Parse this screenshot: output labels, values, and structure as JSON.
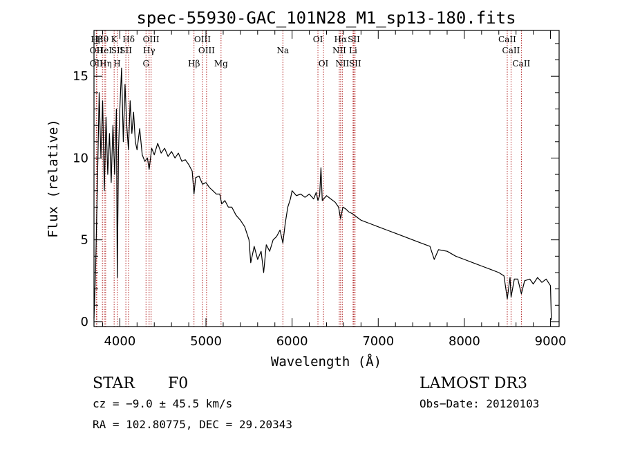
{
  "chart_data": {
    "type": "line",
    "title": "spec-55930-GAC_101N28_M1_sp13-180.fits",
    "xlabel": "Wavelength (Å)",
    "ylabel": "Flux (relative)",
    "xlim": [
      3700,
      9100
    ],
    "ylim": [
      -0.3,
      17.8
    ],
    "xticks": [
      4000,
      5000,
      6000,
      7000,
      8000,
      9000
    ],
    "yticks": [
      0,
      5,
      10,
      15
    ],
    "grid": false,
    "series": [
      {
        "name": "spectrum",
        "points": [
          [
            3700,
            0.2
          ],
          [
            3720,
            3.5
          ],
          [
            3740,
            8.5
          ],
          [
            3760,
            14.0
          ],
          [
            3780,
            10.0
          ],
          [
            3800,
            13.5
          ],
          [
            3820,
            8.0
          ],
          [
            3840,
            12.5
          ],
          [
            3860,
            9.0
          ],
          [
            3880,
            11.5
          ],
          [
            3900,
            8.5
          ],
          [
            3920,
            12.0
          ],
          [
            3940,
            9.0
          ],
          [
            3960,
            13.0
          ],
          [
            3970,
            2.7
          ],
          [
            3985,
            10.5
          ],
          [
            4000,
            13.0
          ],
          [
            4020,
            15.5
          ],
          [
            4040,
            11.0
          ],
          [
            4060,
            14.5
          ],
          [
            4080,
            12.0
          ],
          [
            4100,
            10.5
          ],
          [
            4120,
            13.5
          ],
          [
            4140,
            11.5
          ],
          [
            4160,
            12.8
          ],
          [
            4180,
            11.0
          ],
          [
            4200,
            10.5
          ],
          [
            4230,
            11.8
          ],
          [
            4260,
            10.2
          ],
          [
            4290,
            9.8
          ],
          [
            4320,
            10.0
          ],
          [
            4340,
            9.3
          ],
          [
            4370,
            10.6
          ],
          [
            4400,
            10.2
          ],
          [
            4440,
            10.9
          ],
          [
            4480,
            10.3
          ],
          [
            4520,
            10.6
          ],
          [
            4560,
            10.1
          ],
          [
            4600,
            10.4
          ],
          [
            4640,
            10.0
          ],
          [
            4680,
            10.3
          ],
          [
            4720,
            9.8
          ],
          [
            4760,
            9.9
          ],
          [
            4800,
            9.6
          ],
          [
            4840,
            9.2
          ],
          [
            4861,
            7.8
          ],
          [
            4880,
            8.8
          ],
          [
            4920,
            8.9
          ],
          [
            4960,
            8.4
          ],
          [
            5000,
            8.5
          ],
          [
            5040,
            8.2
          ],
          [
            5080,
            8.0
          ],
          [
            5120,
            7.8
          ],
          [
            5160,
            7.8
          ],
          [
            5183,
            7.2
          ],
          [
            5220,
            7.4
          ],
          [
            5260,
            7.0
          ],
          [
            5300,
            7.0
          ],
          [
            5350,
            6.5
          ],
          [
            5400,
            6.2
          ],
          [
            5450,
            5.8
          ],
          [
            5500,
            5.0
          ],
          [
            5520,
            3.6
          ],
          [
            5560,
            4.6
          ],
          [
            5600,
            3.8
          ],
          [
            5640,
            4.3
          ],
          [
            5670,
            3.0
          ],
          [
            5700,
            4.7
          ],
          [
            5740,
            4.3
          ],
          [
            5780,
            5.0
          ],
          [
            5820,
            5.2
          ],
          [
            5860,
            5.6
          ],
          [
            5893,
            4.8
          ],
          [
            5920,
            6.0
          ],
          [
            5950,
            7.0
          ],
          [
            5980,
            7.5
          ],
          [
            6000,
            8.0
          ],
          [
            6050,
            7.7
          ],
          [
            6100,
            7.8
          ],
          [
            6150,
            7.6
          ],
          [
            6200,
            7.8
          ],
          [
            6250,
            7.5
          ],
          [
            6280,
            7.9
          ],
          [
            6300,
            7.4
          ],
          [
            6320,
            7.7
          ],
          [
            6335,
            9.4
          ],
          [
            6350,
            7.4
          ],
          [
            6400,
            7.7
          ],
          [
            6450,
            7.5
          ],
          [
            6500,
            7.3
          ],
          [
            6540,
            7.0
          ],
          [
            6563,
            6.3
          ],
          [
            6590,
            7.0
          ],
          [
            6620,
            6.9
          ],
          [
            6660,
            6.7
          ],
          [
            6700,
            6.6
          ],
          [
            6750,
            6.4
          ],
          [
            6800,
            6.2
          ],
          [
            6900,
            6.0
          ],
          [
            7000,
            5.8
          ],
          [
            7100,
            5.6
          ],
          [
            7200,
            5.4
          ],
          [
            7300,
            5.2
          ],
          [
            7400,
            5.0
          ],
          [
            7500,
            4.8
          ],
          [
            7600,
            4.6
          ],
          [
            7650,
            3.8
          ],
          [
            7700,
            4.4
          ],
          [
            7800,
            4.3
          ],
          [
            7900,
            4.0
          ],
          [
            8000,
            3.8
          ],
          [
            8100,
            3.6
          ],
          [
            8200,
            3.4
          ],
          [
            8300,
            3.2
          ],
          [
            8400,
            3.0
          ],
          [
            8460,
            2.8
          ],
          [
            8498,
            1.4
          ],
          [
            8530,
            2.7
          ],
          [
            8542,
            1.5
          ],
          [
            8580,
            2.6
          ],
          [
            8620,
            2.6
          ],
          [
            8662,
            1.7
          ],
          [
            8700,
            2.5
          ],
          [
            8760,
            2.6
          ],
          [
            8800,
            2.3
          ],
          [
            8850,
            2.7
          ],
          [
            8900,
            2.4
          ],
          [
            8950,
            2.6
          ],
          [
            9000,
            2.2
          ],
          [
            9010,
            0.1
          ]
        ]
      }
    ],
    "line_markers": [
      {
        "label": "Hβ",
        "x": 3733,
        "row": 0
      },
      {
        "label": "OII",
        "x": 3727,
        "row": 1
      },
      {
        "label": "OII",
        "x": 3727,
        "row": 2
      },
      {
        "label": "Hθ",
        "x": 3798,
        "row": 0
      },
      {
        "label": "HeI",
        "x": 3820,
        "row": 1
      },
      {
        "label": "Hη",
        "x": 3835,
        "row": 2
      },
      {
        "label": "K",
        "x": 3934,
        "row": 0
      },
      {
        "label": "SII",
        "x": 3970,
        "row": 1
      },
      {
        "label": "H",
        "x": 3969,
        "row": 2
      },
      {
        "label": "Hδ",
        "x": 4102,
        "row": 0
      },
      {
        "label": "SII",
        "x": 4070,
        "row": 1
      },
      {
        "label": "OIII",
        "x": 4363,
        "row": 0
      },
      {
        "label": "Hγ",
        "x": 4340,
        "row": 1
      },
      {
        "label": "G",
        "x": 4304,
        "row": 2
      },
      {
        "label": "OIII",
        "x": 4959,
        "row": 0
      },
      {
        "label": "OIII",
        "x": 5007,
        "row": 1
      },
      {
        "label": "Hβ",
        "x": 4861,
        "row": 2
      },
      {
        "label": "Mg",
        "x": 5175,
        "row": 2
      },
      {
        "label": "Na",
        "x": 5893,
        "row": 1
      },
      {
        "label": "OI",
        "x": 6300,
        "row": 0
      },
      {
        "label": "OI",
        "x": 6364,
        "row": 2
      },
      {
        "label": "Hα",
        "x": 6563,
        "row": 0
      },
      {
        "label": "NII",
        "x": 6548,
        "row": 1
      },
      {
        "label": "NII",
        "x": 6583,
        "row": 2
      },
      {
        "label": "SII",
        "x": 6717,
        "row": 0
      },
      {
        "label": "Li",
        "x": 6708,
        "row": 1
      },
      {
        "label": "SII",
        "x": 6731,
        "row": 2
      },
      {
        "label": "CaII",
        "x": 8498,
        "row": 0
      },
      {
        "label": "CaII",
        "x": 8542,
        "row": 1
      },
      {
        "label": "CaII",
        "x": 8662,
        "row": 2
      }
    ]
  },
  "info": {
    "class": "STAR",
    "subclass": "F0",
    "survey": "LAMOST DR3",
    "cz": "cz = −9.0 ± 45.5 km/s",
    "obs_date": "Obs−Date: 20120103",
    "radec": "RA = 102.80775, DEC =  29.20343"
  },
  "colors": {
    "axis": "#000000",
    "spectrum": "#000000",
    "marker": "#b22222"
  }
}
